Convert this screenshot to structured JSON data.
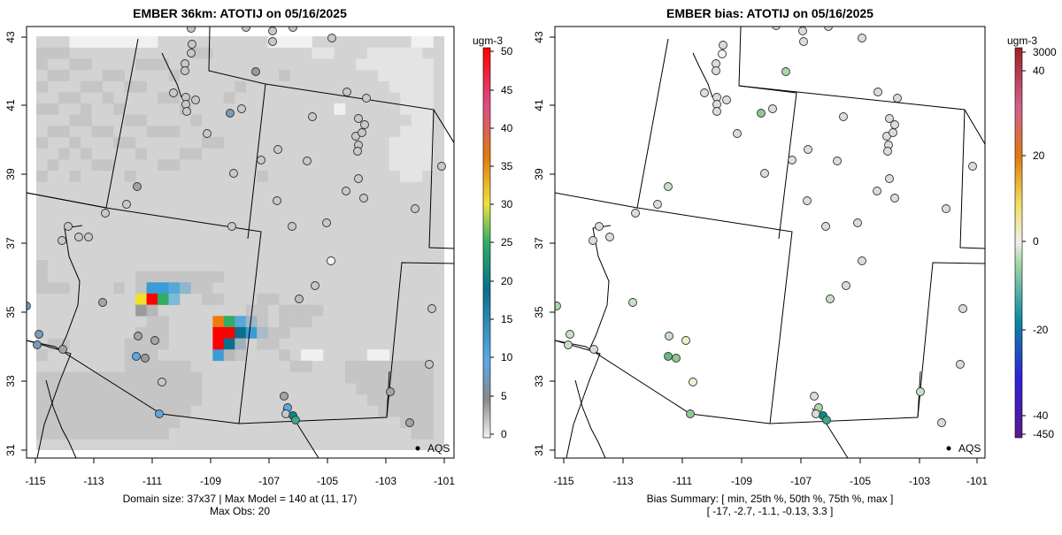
{
  "left_panel": {
    "title": "EMBER 36km: ATOTIJ on 05/16/2025",
    "colorbar_unit": "ugm-3",
    "colorbar_ticks": [
      "50",
      "45",
      "40",
      "35",
      "30",
      "25",
      "20",
      "15",
      "10",
      "5",
      "0"
    ],
    "caption_line1": "Domain size: 37x37 | Max Model = 140 at (11, 17)",
    "caption_line2": "Max Obs: 20",
    "legend_label": "AQS"
  },
  "right_panel": {
    "title": "EMBER bias: ATOTIJ on 05/16/2025",
    "colorbar_unit": "ugm-3",
    "colorbar_ticks": [
      "3000",
      "40",
      "20",
      "0",
      "-20",
      "-40",
      "-450"
    ],
    "caption_line1": "Bias Summary: [ min, 25th %, 50th %, 75th %, max ]",
    "caption_line2": "[ -17,   -2.7,   -1.1,   -0.13,   3.3 ]",
    "legend_label": "AQS"
  },
  "axes": {
    "x_ticks": [
      "-115",
      "-113",
      "-111",
      "-109",
      "-107",
      "-105",
      "-103",
      "-101"
    ],
    "y_ticks": [
      "43",
      "41",
      "39",
      "37",
      "35",
      "33",
      "31"
    ]
  },
  "colors": {
    "grid_base": "#d3d3d3",
    "grid_light": "#e3e3e3",
    "grid_dark": "#c4c4c4",
    "conc_high": "#ff0000",
    "conc_mid": "#3a9bd6",
    "bias_neutral": "#dcdcdc",
    "bias_green": "#8fc98f"
  }
}
